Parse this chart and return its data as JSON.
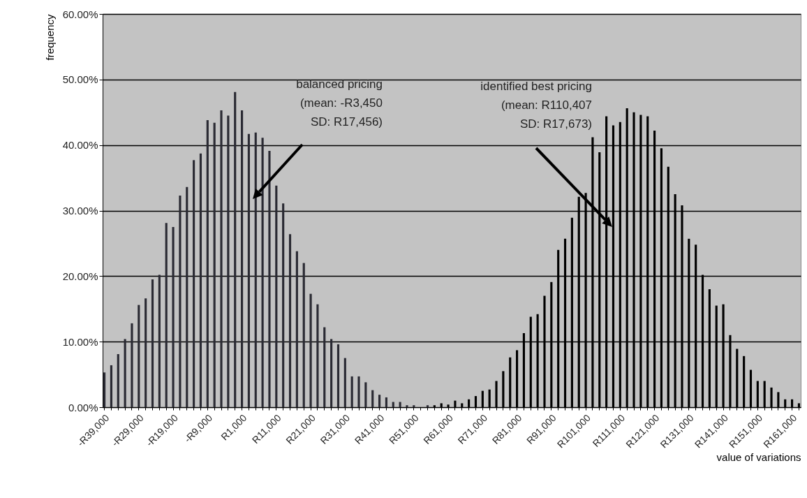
{
  "chart_data": {
    "type": "bar",
    "xlabel": "value of variations",
    "ylabel": "frequency",
    "categories": [
      "-R39,000",
      null,
      null,
      null,
      null,
      "-R29,000",
      null,
      null,
      null,
      null,
      "-R19,000",
      null,
      null,
      null,
      null,
      "-R9,000",
      null,
      null,
      null,
      null,
      "R1,000",
      null,
      null,
      null,
      null,
      "R11,000",
      null,
      null,
      null,
      null,
      "R21,000",
      null,
      null,
      null,
      null,
      "R31,000",
      null,
      null,
      null,
      null,
      "R41,000",
      null,
      null,
      null,
      null,
      "R51,000",
      null,
      null,
      null,
      null,
      "R61,000",
      null,
      null,
      null,
      null,
      "R71,000",
      null,
      null,
      null,
      null,
      "R81,000",
      null,
      null,
      null,
      null,
      "R91,000",
      null,
      null,
      null,
      null,
      "R101,000",
      null,
      null,
      null,
      null,
      "R111,000",
      null,
      null,
      null,
      null,
      "R121,000",
      null,
      null,
      null,
      null,
      "R131,000",
      null,
      null,
      null,
      null,
      "R141,000",
      null,
      null,
      null,
      null,
      "R151,000",
      null,
      null,
      null,
      null,
      "R161,000",
      null
    ],
    "series": [
      {
        "color": "#2a2a33",
        "values": [
          5.3,
          6.4,
          8.1,
          10.4,
          12.8,
          15.6,
          16.6,
          19.5,
          20.2,
          28.1,
          27.5,
          32.3,
          33.6,
          37.7,
          38.7,
          43.8,
          43.4,
          45.3,
          44.5,
          48.1,
          45.3,
          41.7,
          41.9,
          41.1,
          39.1,
          33.8,
          31.1,
          26.4,
          23.8,
          22.0,
          17.3,
          15.7,
          12.2,
          10.4,
          9.6,
          7.5,
          4.7,
          4.7,
          3.8,
          2.6,
          1.9,
          1.5,
          0.8,
          0.8,
          0.3,
          0.3,
          null,
          0.3,
          null,
          null,
          null,
          null,
          null,
          null,
          null,
          null,
          null,
          null,
          null,
          null,
          null,
          null,
          null,
          null,
          null,
          null,
          null,
          null,
          null,
          null,
          null,
          null,
          null,
          null,
          null,
          null,
          null,
          null,
          null,
          null,
          null,
          null,
          null,
          null,
          null,
          null,
          null,
          null,
          null,
          null,
          null,
          null,
          null,
          null,
          null,
          null,
          null,
          null,
          null,
          null,
          null,
          null
        ]
      },
      {
        "color": "#000000",
        "values": [
          null,
          null,
          null,
          null,
          null,
          null,
          null,
          null,
          null,
          null,
          null,
          null,
          null,
          null,
          null,
          null,
          null,
          null,
          null,
          null,
          null,
          null,
          null,
          null,
          null,
          null,
          null,
          null,
          null,
          null,
          null,
          null,
          null,
          null,
          null,
          null,
          null,
          null,
          null,
          null,
          null,
          null,
          null,
          null,
          null,
          null,
          null,
          null,
          0.3,
          0.6,
          0.4,
          1.0,
          0.6,
          1.2,
          1.7,
          2.5,
          2.7,
          4.0,
          5.5,
          7.6,
          8.7,
          11.3,
          13.8,
          14.2,
          17.0,
          19.1,
          24.0,
          25.7,
          28.9,
          32.1,
          32.7,
          41.2,
          38.9,
          44.4,
          43.0,
          43.5,
          45.6,
          45.0,
          44.6,
          44.4,
          42.2,
          39.5,
          36.7,
          32.5,
          30.8,
          25.7,
          24.8,
          20.2,
          18.0,
          15.5,
          15.7,
          11.0,
          8.9,
          7.8,
          5.7,
          4.0,
          4.0,
          3.0,
          2.3,
          1.2,
          1.2,
          0.6
        ]
      }
    ],
    "ylim": [
      0,
      60
    ],
    "yticks": [
      {
        "value": 0,
        "label": "0.00%"
      },
      {
        "value": 10,
        "label": "10.00%"
      },
      {
        "value": 20,
        "label": "20.00%"
      },
      {
        "value": 30,
        "label": "30.00%"
      },
      {
        "value": 40,
        "label": "40.00%"
      },
      {
        "value": 50,
        "label": "50.00%"
      },
      {
        "value": 60,
        "label": "60.00%"
      }
    ],
    "grid": "y",
    "annotations": [
      "balanced pricing\n(mean: -R3,450\nSD: R17,456)",
      "identified best pricing\n(mean: R110,407\nSD: R17,673)"
    ]
  }
}
